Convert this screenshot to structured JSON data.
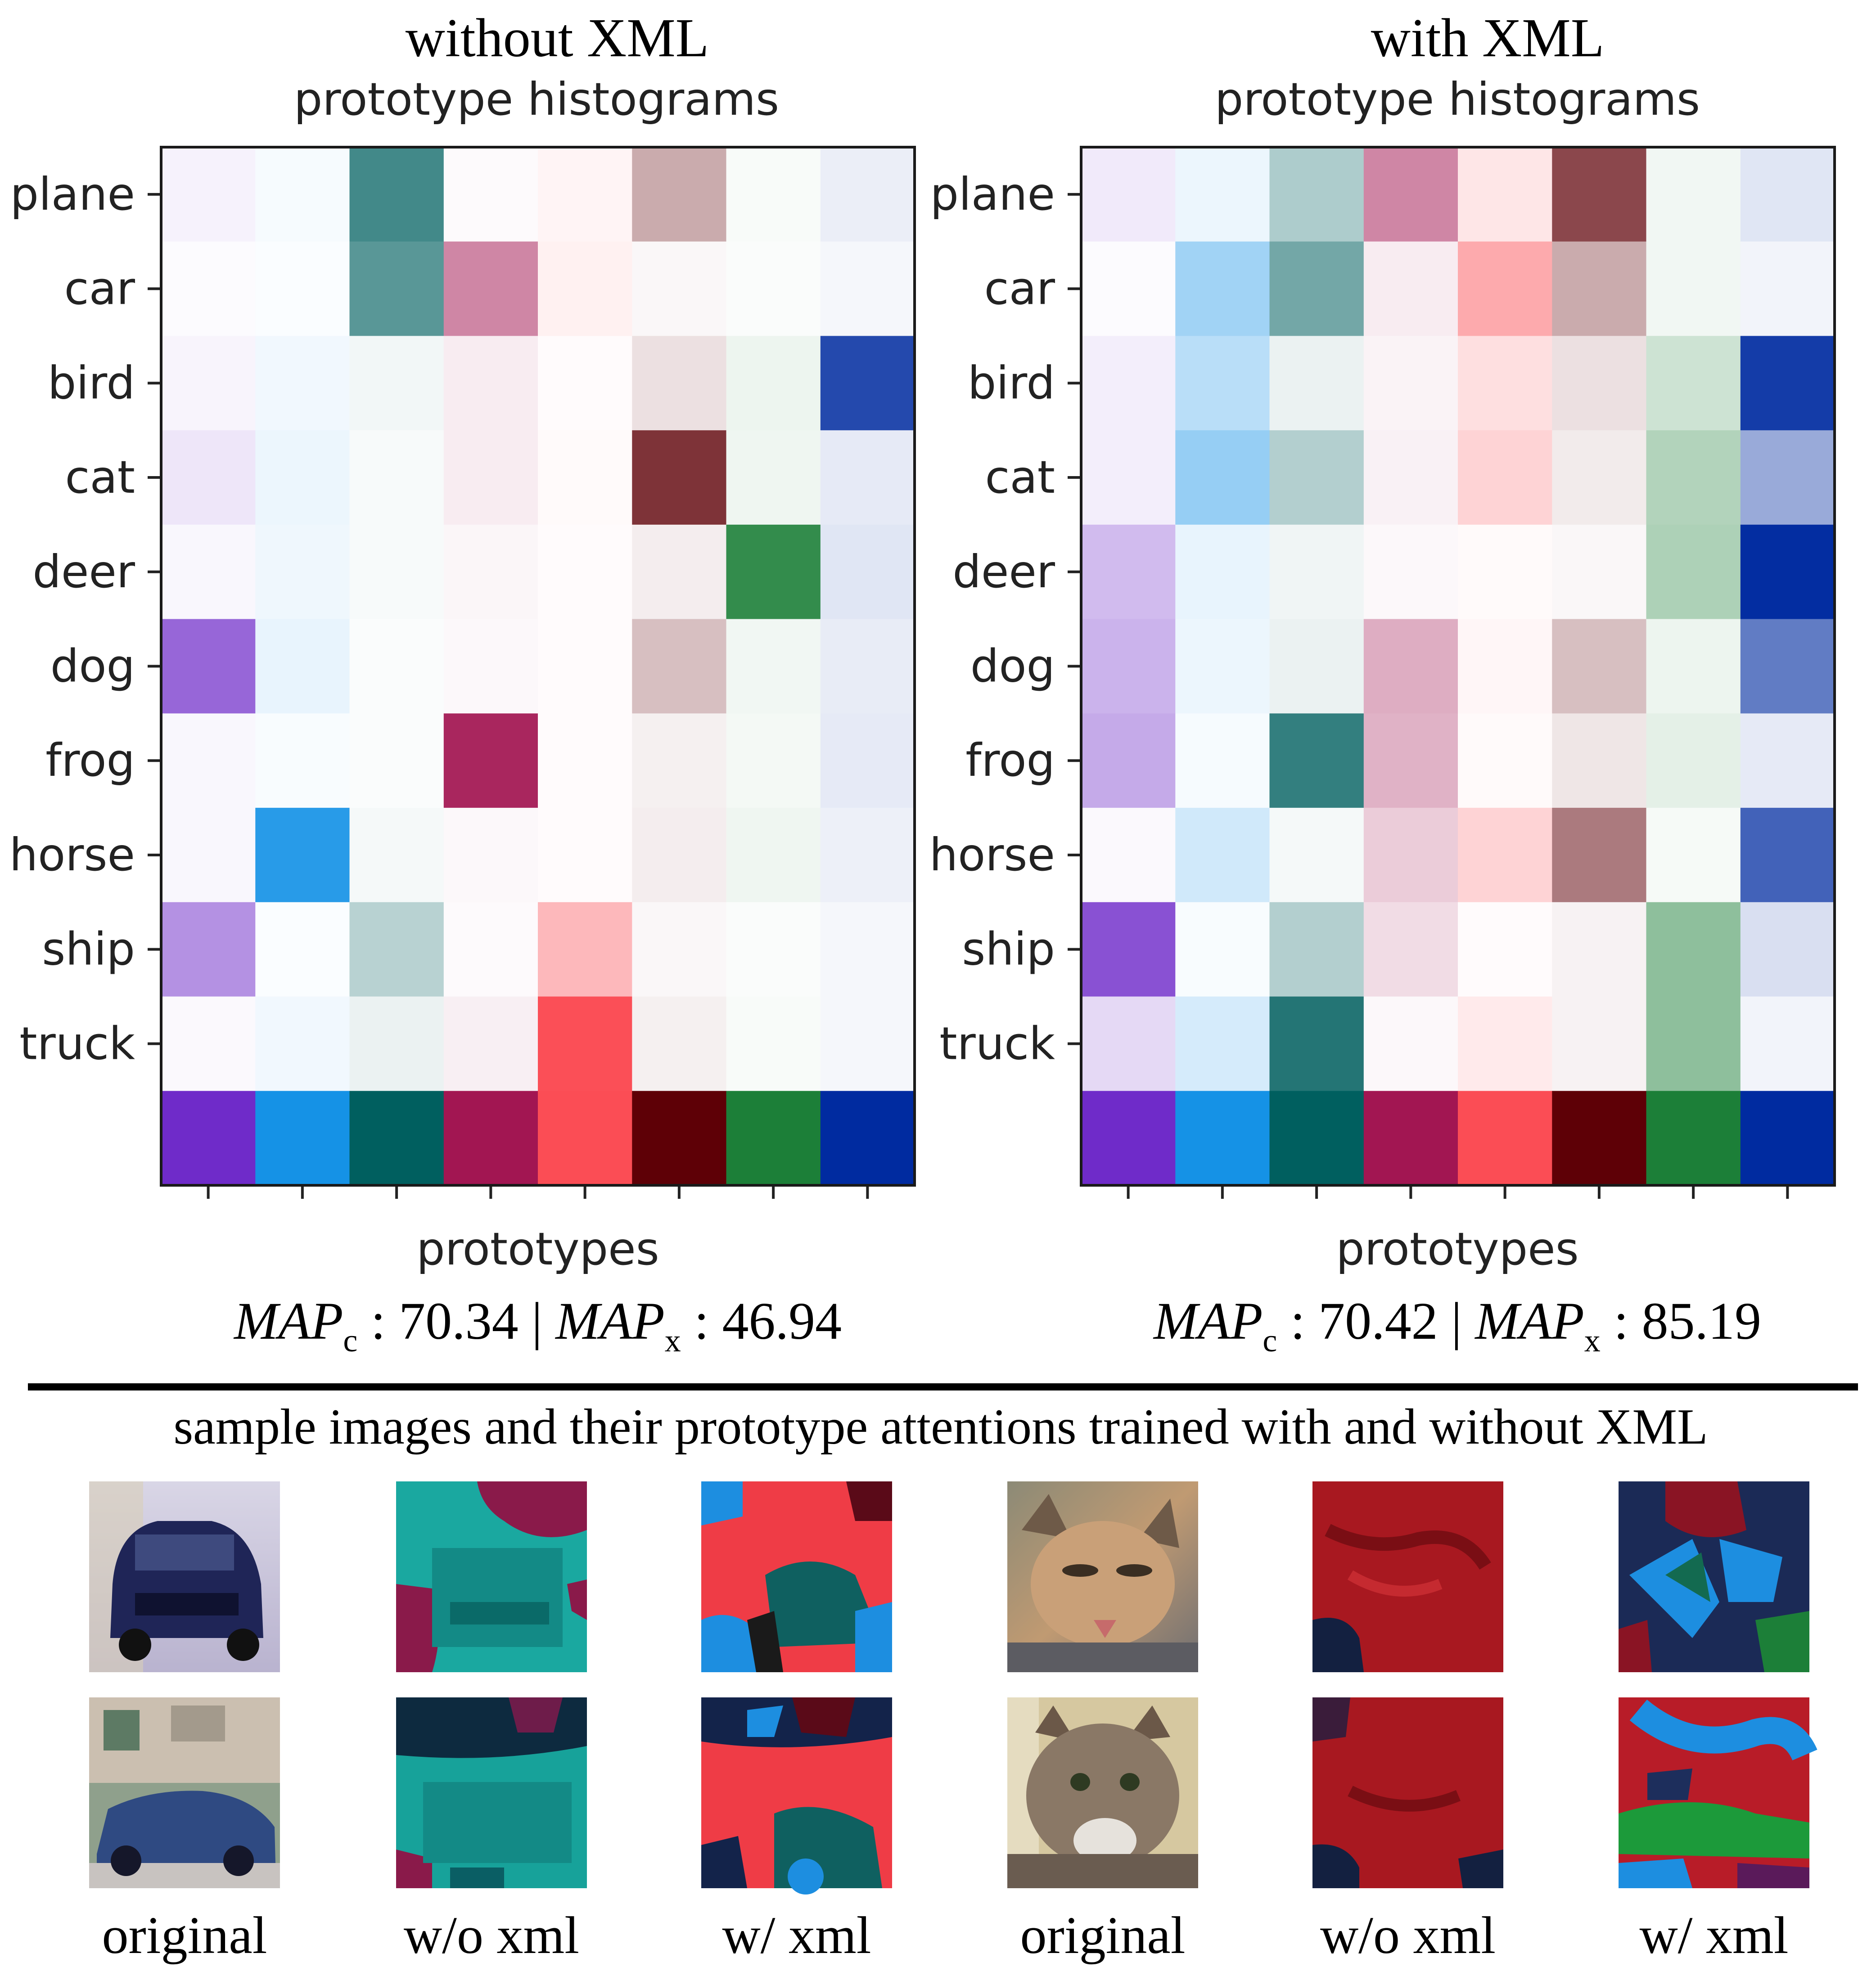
{
  "figure": {
    "separator_caption": "sample images and their prototype attentions trained with and without XML"
  },
  "chart_data": [
    {
      "type": "heatmap",
      "title": "without XML",
      "subtitle": "prototype histograms",
      "xlabel": "prototypes",
      "ylabel": "",
      "rows": [
        "plane",
        "car",
        "bird",
        "cat",
        "deer",
        "dog",
        "frog",
        "horse",
        "ship",
        "truck"
      ],
      "n_columns": 8,
      "prototype_colors": [
        "#6f2bc9",
        "#1592e6",
        "#005f5f",
        "#a21652",
        "#fb4d55",
        "#5e0006",
        "#1c7f38",
        "#002ba0"
      ],
      "values": [
        [
          0.06,
          0.04,
          0.74,
          0.02,
          0.06,
          0.33,
          0.03,
          0.08
        ],
        [
          0.02,
          0.02,
          0.65,
          0.52,
          0.08,
          0.03,
          0.02,
          0.04
        ],
        [
          0.05,
          0.06,
          0.05,
          0.08,
          0.02,
          0.12,
          0.08,
          0.86
        ],
        [
          0.12,
          0.08,
          0.03,
          0.08,
          0.03,
          0.8,
          0.07,
          0.1
        ],
        [
          0.04,
          0.07,
          0.03,
          0.04,
          0.02,
          0.07,
          0.9,
          0.12
        ],
        [
          0.72,
          0.1,
          0.02,
          0.03,
          0.02,
          0.25,
          0.06,
          0.09
        ],
        [
          0.04,
          0.03,
          0.02,
          0.93,
          0.02,
          0.06,
          0.05,
          0.1
        ],
        [
          0.04,
          0.92,
          0.04,
          0.03,
          0.02,
          0.07,
          0.07,
          0.07
        ],
        [
          0.52,
          0.02,
          0.28,
          0.02,
          0.4,
          0.03,
          0.02,
          0.04
        ],
        [
          0.03,
          0.06,
          0.08,
          0.07,
          0.99,
          0.06,
          0.03,
          0.04
        ]
      ],
      "metrics": {
        "map_c": "70.34",
        "map_x": "46.94"
      }
    },
    {
      "type": "heatmap",
      "title": "with XML",
      "subtitle": "prototype histograms",
      "xlabel": "prototypes",
      "ylabel": "",
      "rows": [
        "plane",
        "car",
        "bird",
        "cat",
        "deer",
        "dog",
        "frog",
        "horse",
        "ship",
        "truck"
      ],
      "n_columns": 8,
      "prototype_colors": [
        "#6f2bc9",
        "#1592e6",
        "#005f5f",
        "#a21652",
        "#fb4d55",
        "#5e0006",
        "#1c7f38",
        "#002ba0"
      ],
      "values": [
        [
          0.1,
          0.08,
          0.32,
          0.52,
          0.14,
          0.72,
          0.06,
          0.12
        ],
        [
          0.02,
          0.4,
          0.55,
          0.08,
          0.48,
          0.33,
          0.06,
          0.05
        ],
        [
          0.08,
          0.3,
          0.08,
          0.05,
          0.18,
          0.12,
          0.22,
          0.92
        ],
        [
          0.08,
          0.45,
          0.3,
          0.06,
          0.25,
          0.08,
          0.34,
          0.4
        ],
        [
          0.32,
          0.1,
          0.06,
          0.03,
          0.03,
          0.03,
          0.36,
          0.99
        ],
        [
          0.36,
          0.08,
          0.08,
          0.35,
          0.05,
          0.25,
          0.08,
          0.62
        ],
        [
          0.4,
          0.04,
          0.8,
          0.33,
          0.03,
          0.1,
          0.12,
          0.1
        ],
        [
          0.03,
          0.2,
          0.04,
          0.22,
          0.25,
          0.52,
          0.04,
          0.74
        ],
        [
          0.82,
          0.03,
          0.3,
          0.15,
          0.02,
          0.05,
          0.5,
          0.15
        ],
        [
          0.18,
          0.18,
          0.86,
          0.03,
          0.12,
          0.05,
          0.5,
          0.05
        ]
      ],
      "metrics": {
        "map_c": "70.42",
        "map_x": "85.19"
      }
    }
  ],
  "samples": [
    {
      "label": "original",
      "kind": "car-photo"
    },
    {
      "label": "w/o xml",
      "kind": "attention-teal"
    },
    {
      "label": "w/ xml",
      "kind": "attention-mixed"
    },
    {
      "label": "original",
      "kind": "cat-photo"
    },
    {
      "label": "w/o xml",
      "kind": "attention-red"
    },
    {
      "label": "w/ xml",
      "kind": "attention-blue-green"
    }
  ]
}
